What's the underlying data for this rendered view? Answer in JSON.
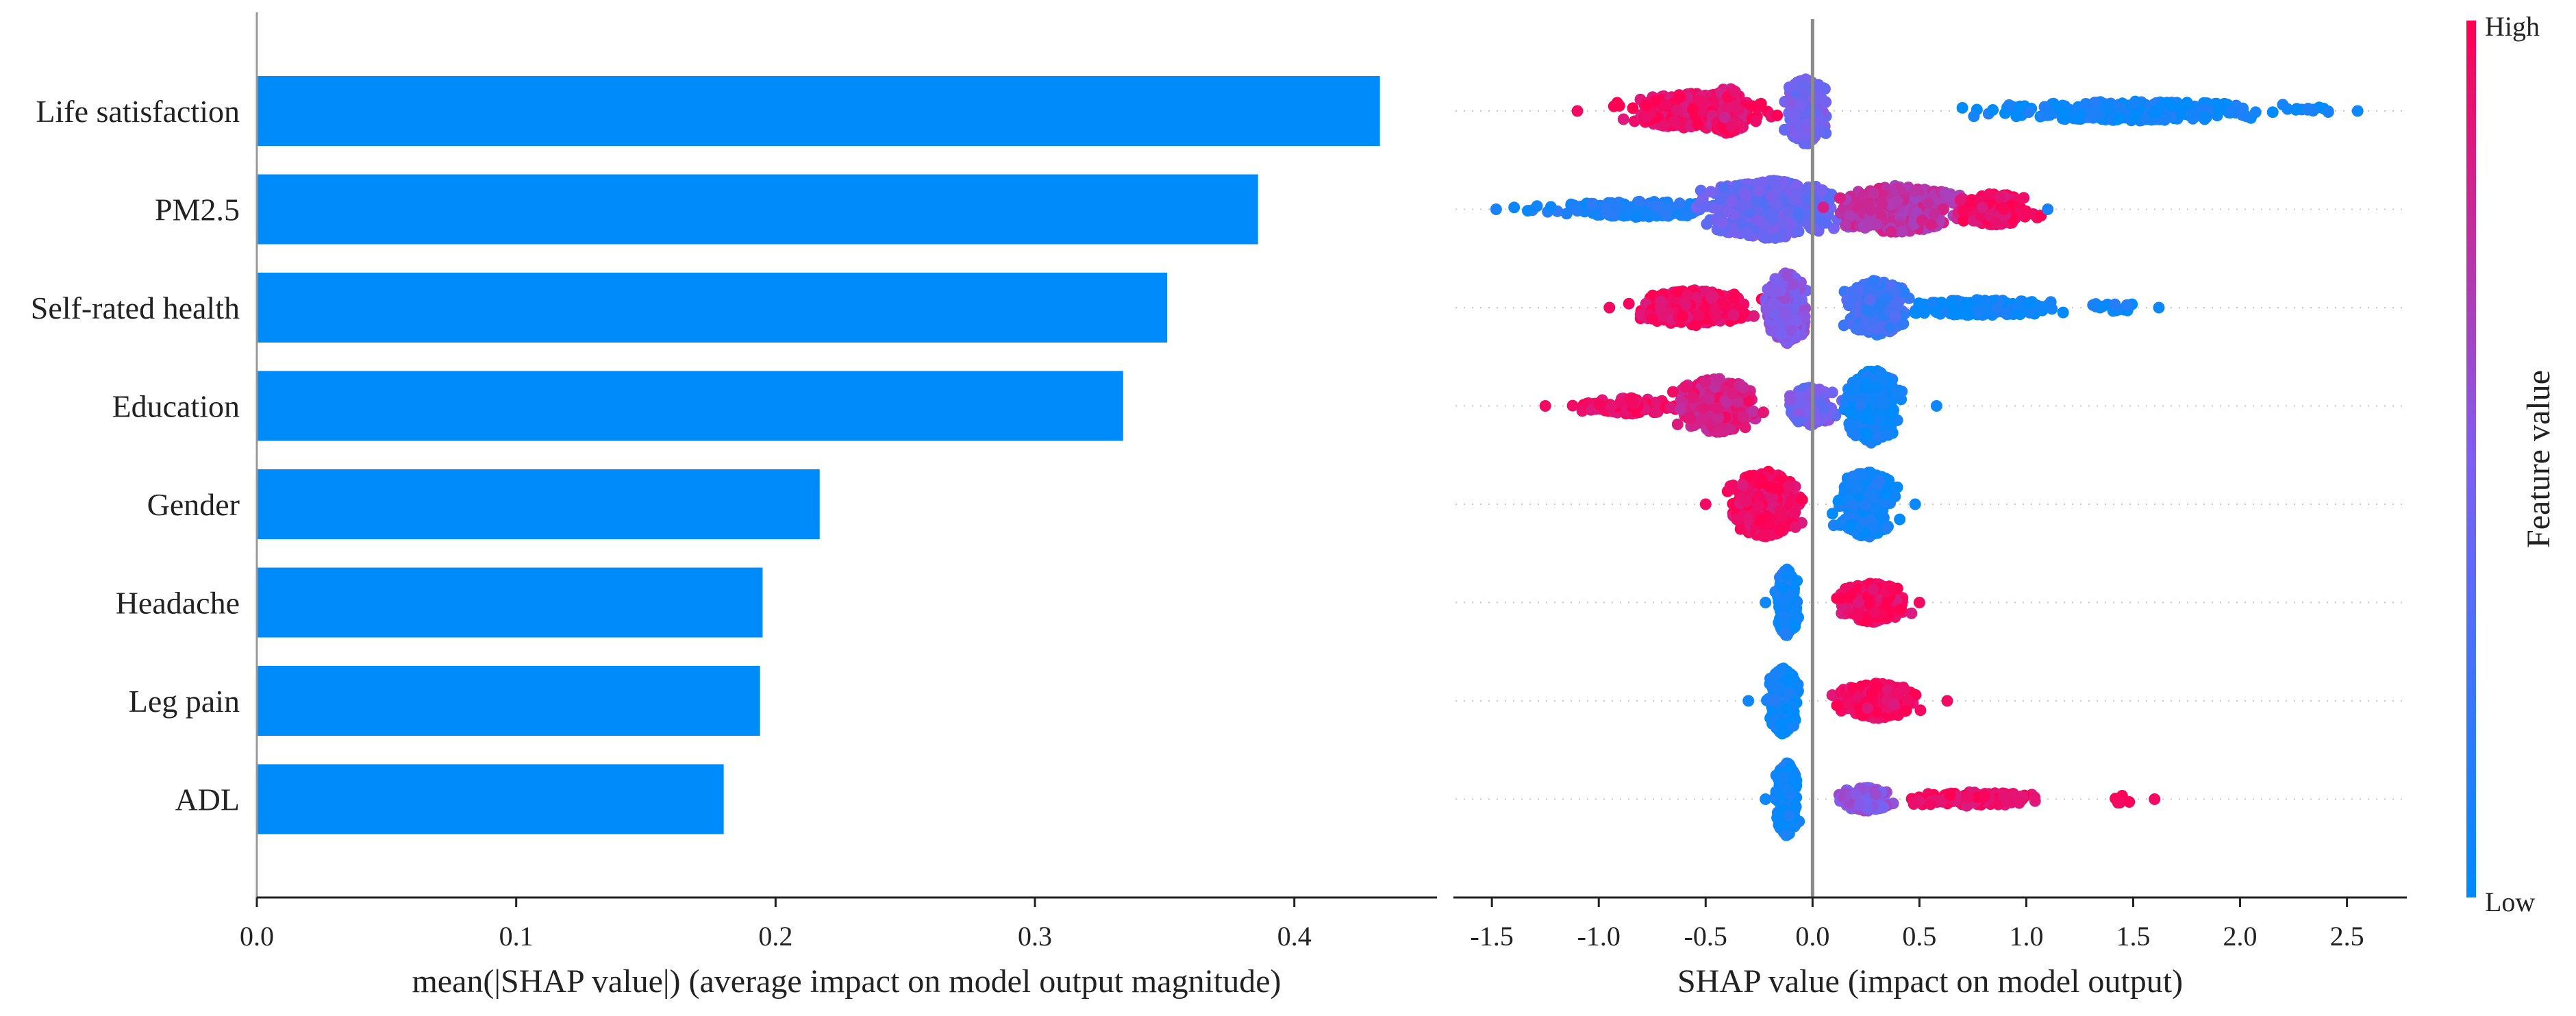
{
  "chart_data": [
    {
      "type": "bar",
      "categories": [
        "Life satisfaction",
        "PM2.5",
        "Self-rated health",
        "Education",
        "Gender",
        "Headache",
        "Leg pain",
        "ADL"
      ],
      "values": [
        0.433,
        0.386,
        0.351,
        0.334,
        0.217,
        0.195,
        0.194,
        0.18
      ],
      "xlabel": "mean(|SHAP value|) (average impact on model output magnitude)",
      "ylabel": "",
      "xlim": [
        0,
        0.455
      ],
      "xticks": [
        0.0,
        0.1,
        0.2,
        0.3,
        0.4
      ],
      "xtick_labels": [
        "0.0",
        "0.1",
        "0.2",
        "0.3",
        "0.4"
      ],
      "bar_color": "#008bfb"
    },
    {
      "type": "scatter",
      "categories": [
        "Life satisfaction",
        "PM2.5",
        "Self-rated health",
        "Education",
        "Gender",
        "Headache",
        "Leg pain",
        "ADL"
      ],
      "xlabel": "SHAP value (impact on model output)",
      "xlim": [
        -1.68,
        2.78
      ],
      "xticks": [
        -1.5,
        -1.0,
        -0.5,
        0.0,
        0.5,
        1.0,
        1.5,
        2.0,
        2.5
      ],
      "xtick_labels": [
        "-1.5",
        "-1.0",
        "-0.5",
        "0.0",
        "0.5",
        "1.0",
        "1.5",
        "2.0",
        "2.5"
      ],
      "zero_line": 0,
      "color_low": "#008bfb",
      "color_high": "#ff0052",
      "colorbar": {
        "label": "Feature value",
        "high": "High",
        "low": "Low"
      },
      "rows": [
        {
          "feature": "Life satisfaction",
          "range": [
            -1.1,
            2.55
          ],
          "clusters": [
            {
              "x": -0.55,
              "w": 0.5,
              "h": 0.45,
              "c": 0.95,
              "n": 320
            },
            {
              "x": -0.4,
              "w": 0.12,
              "h": 0.6,
              "c": 0.9,
              "n": 120
            },
            {
              "x": -0.03,
              "w": 0.14,
              "h": 0.85,
              "c": 0.45,
              "n": 320
            },
            {
              "x": 1.5,
              "w": 1.0,
              "h": 0.25,
              "c": 0.05,
              "n": 320
            },
            {
              "x": 2.35,
              "w": 0.2,
              "h": 0.1,
              "c": 0.05,
              "n": 10
            }
          ]
        },
        {
          "feature": "PM2.5",
          "range": [
            -1.48,
            1.1
          ],
          "clusters": [
            {
              "x": -0.8,
              "w": 0.55,
              "h": 0.2,
              "c": 0.1,
              "n": 160
            },
            {
              "x": -0.2,
              "w": 0.45,
              "h": 0.75,
              "c": 0.4,
              "n": 520
            },
            {
              "x": 0.4,
              "w": 0.4,
              "h": 0.6,
              "c": 0.75,
              "n": 300
            },
            {
              "x": 0.85,
              "w": 0.28,
              "h": 0.4,
              "c": 0.95,
              "n": 160
            },
            {
              "x": -1.3,
              "w": 0.18,
              "h": 0.1,
              "c": 0.1,
              "n": 6
            }
          ]
        },
        {
          "feature": "Self-rated health",
          "range": [
            -0.95,
            1.62
          ],
          "clusters": [
            {
              "x": -0.55,
              "w": 0.4,
              "h": 0.45,
              "c": 0.95,
              "n": 300
            },
            {
              "x": -0.12,
              "w": 0.14,
              "h": 0.9,
              "c": 0.55,
              "n": 360
            },
            {
              "x": 0.3,
              "w": 0.22,
              "h": 0.7,
              "c": 0.25,
              "n": 280
            },
            {
              "x": 0.8,
              "w": 0.55,
              "h": 0.2,
              "c": 0.05,
              "n": 200
            },
            {
              "x": 1.4,
              "w": 0.2,
              "h": 0.12,
              "c": 0.05,
              "n": 20
            }
          ]
        },
        {
          "feature": "Education",
          "range": [
            -1.25,
            0.58
          ],
          "clusters": [
            {
              "x": -0.85,
              "w": 0.35,
              "h": 0.2,
              "c": 0.95,
              "n": 100
            },
            {
              "x": -0.45,
              "w": 0.3,
              "h": 0.7,
              "c": 0.85,
              "n": 320
            },
            {
              "x": 0.0,
              "w": 0.16,
              "h": 0.5,
              "c": 0.45,
              "n": 160
            },
            {
              "x": 0.28,
              "w": 0.18,
              "h": 0.95,
              "c": 0.05,
              "n": 340
            }
          ]
        },
        {
          "feature": "Gender",
          "range": [
            -0.5,
            0.48
          ],
          "clusters": [
            {
              "x": -0.22,
              "w": 0.24,
              "h": 0.85,
              "c": 0.95,
              "n": 420
            },
            {
              "x": 0.25,
              "w": 0.2,
              "h": 0.85,
              "c": 0.05,
              "n": 420
            }
          ]
        },
        {
          "feature": "Headache",
          "range": [
            -0.22,
            0.5
          ],
          "clusters": [
            {
              "x": -0.12,
              "w": 0.07,
              "h": 0.85,
              "c": 0.05,
              "n": 380
            },
            {
              "x": 0.28,
              "w": 0.22,
              "h": 0.5,
              "c": 0.95,
              "n": 300
            }
          ]
        },
        {
          "feature": "Leg pain",
          "range": [
            -0.3,
            0.63
          ],
          "clusters": [
            {
              "x": -0.14,
              "w": 0.1,
              "h": 0.85,
              "c": 0.05,
              "n": 380
            },
            {
              "x": 0.3,
              "w": 0.26,
              "h": 0.45,
              "c": 0.95,
              "n": 300
            }
          ]
        },
        {
          "feature": "ADL",
          "range": [
            -0.22,
            1.6
          ],
          "clusters": [
            {
              "x": -0.12,
              "w": 0.07,
              "h": 0.95,
              "c": 0.05,
              "n": 400
            },
            {
              "x": 0.25,
              "w": 0.18,
              "h": 0.3,
              "c": 0.55,
              "n": 160
            },
            {
              "x": 0.75,
              "w": 0.45,
              "h": 0.18,
              "c": 0.95,
              "n": 150
            },
            {
              "x": 1.45,
              "w": 0.12,
              "h": 0.1,
              "c": 0.95,
              "n": 6
            }
          ]
        }
      ]
    }
  ]
}
